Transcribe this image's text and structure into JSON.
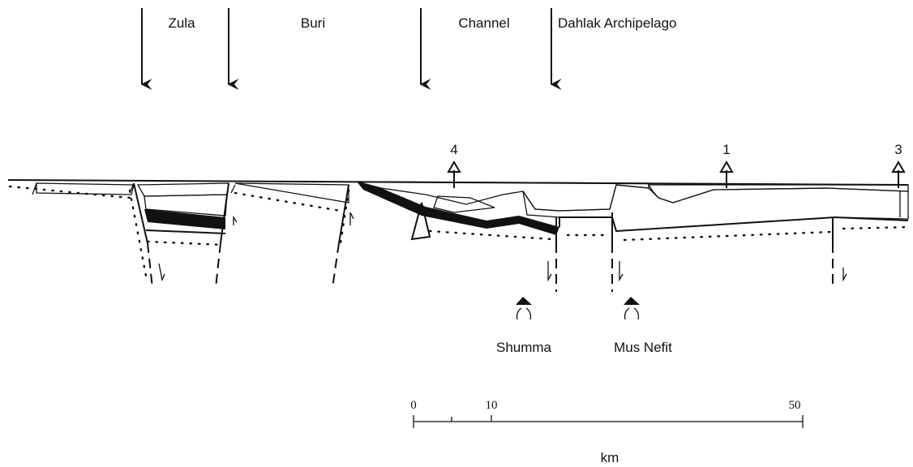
{
  "regions": [
    "Zula",
    "Buri",
    "Channel",
    "Dahlak Archipelago"
  ],
  "wells": [
    "4",
    "1",
    "3"
  ],
  "volcanoes": [
    "Shumma",
    "Mus Nefit"
  ],
  "scale": {
    "ticks": [
      "0",
      "10",
      "50"
    ],
    "unit": "km"
  }
}
